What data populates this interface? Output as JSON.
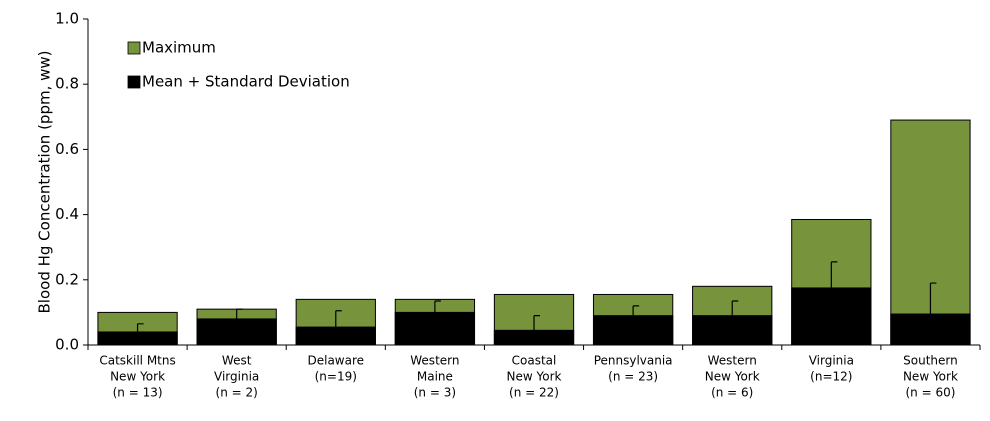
{
  "chart_data": {
    "type": "bar",
    "ylabel": "Blood Hg Concentration (ppm, ww)",
    "categories": [
      [
        "Catskill Mtns",
        "New York",
        "(n = 13)"
      ],
      [
        "West",
        "Virginia",
        "(n = 2)"
      ],
      [
        "Delaware",
        "(n=19)"
      ],
      [
        "Western",
        "Maine",
        "(n = 3)"
      ],
      [
        "Coastal",
        "New York",
        "(n = 22)"
      ],
      [
        "Pennsylvania",
        "(n = 23)"
      ],
      [
        "Western",
        "New York",
        "(n = 6)"
      ],
      [
        "Virginia",
        "(n=12)"
      ],
      [
        "Southern",
        "New York",
        "(n = 60)"
      ]
    ],
    "series": [
      {
        "name": "Maximum",
        "color": "#77933c",
        "values": [
          0.1,
          0.11,
          0.14,
          0.14,
          0.155,
          0.155,
          0.18,
          0.385,
          0.69
        ]
      },
      {
        "name": "Mean + Standard Deviation",
        "color": "#000000",
        "values": [
          0.04,
          0.08,
          0.055,
          0.1,
          0.045,
          0.09,
          0.09,
          0.175,
          0.095
        ],
        "errors": [
          0.025,
          0.03,
          0.05,
          0.035,
          0.045,
          0.03,
          0.045,
          0.08,
          0.095
        ]
      }
    ],
    "ylim": [
      0,
      1
    ],
    "yticks": [
      {
        "value": 0,
        "label": "0.0"
      },
      0.2,
      0.4,
      0.6,
      0.8,
      {
        "value": 1,
        "label": "1.0"
      }
    ],
    "legend": "upper left"
  }
}
